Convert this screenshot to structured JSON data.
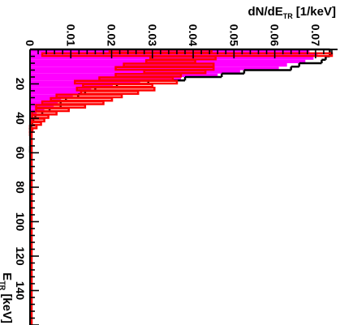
{
  "chart_data": {
    "type": "bar",
    "orientation": "rotated-90-clockwise",
    "xlabel": {
      "main": "E",
      "sub": "TR",
      "unit": "[keV]"
    },
    "ylabel": {
      "main": "dN/dE",
      "sub": "TR",
      "unit": "[1/keV]"
    },
    "xlim": [
      0,
      160
    ],
    "ylim": [
      0,
      0.075
    ],
    "xticks": [
      20,
      40,
      60,
      80,
      100,
      120,
      140
    ],
    "yticks": [
      0,
      0.01,
      0.02,
      0.03,
      0.04,
      0.05,
      0.06,
      0.07
    ],
    "ytick_labels": [
      "0",
      "0.01",
      "0.02",
      "0.03",
      "0.04",
      "0.05",
      "0.06",
      "0.07"
    ],
    "bin_width": 2,
    "series": [
      {
        "style": "step-line",
        "color": "#000000",
        "bins": [
          [
            2,
            0.0735
          ],
          [
            4,
            0.0735
          ],
          [
            6,
            0.0725
          ],
          [
            8,
            0.0715
          ],
          [
            10,
            0.066
          ],
          [
            12,
            0.064
          ],
          [
            14,
            0.0525
          ],
          [
            16,
            0.047
          ],
          [
            18,
            0.038
          ],
          [
            20,
            0.029
          ],
          [
            22,
            0.0213
          ],
          [
            24,
            0.016
          ],
          [
            26,
            0.0135
          ],
          [
            28,
            0.0118
          ],
          [
            30,
            0.0088
          ],
          [
            32,
            0.0075
          ],
          [
            34,
            0.0075
          ],
          [
            36,
            0.0048
          ],
          [
            38,
            0.003
          ],
          [
            40,
            0.0013
          ],
          [
            42,
            0.0008
          ],
          [
            44,
            0.0005
          ],
          [
            46,
            0.0003
          ],
          [
            48,
            0.0002
          ],
          [
            50,
            0.0001
          ],
          [
            52,
            0.0001
          ],
          [
            54,
            5e-05
          ],
          [
            56,
            4e-05
          ],
          [
            58,
            2e-05
          ],
          [
            60,
            1e-05
          ]
        ]
      },
      {
        "style": "filled",
        "color": "#ff00ff",
        "bins": [
          [
            2,
            0.0685
          ],
          [
            4,
            0.0705
          ],
          [
            6,
            0.0695
          ],
          [
            8,
            0.0675
          ],
          [
            10,
            0.063
          ],
          [
            12,
            0.061
          ],
          [
            14,
            0.0515
          ],
          [
            16,
            0.046
          ],
          [
            18,
            0.037
          ],
          [
            20,
            0.027
          ],
          [
            22,
            0.0203
          ],
          [
            24,
            0.015
          ],
          [
            26,
            0.0128
          ],
          [
            28,
            0.0105
          ],
          [
            30,
            0.0076
          ],
          [
            32,
            0.0068
          ],
          [
            34,
            0.0058
          ],
          [
            36,
            0.0035
          ],
          [
            38,
            0.0016
          ],
          [
            40,
            0.0008
          ],
          [
            42,
            0.0005
          ],
          [
            44,
            0.0003
          ],
          [
            46,
            0.0002
          ],
          [
            48,
            0.0001
          ],
          [
            50,
            0.0001
          ]
        ]
      },
      {
        "style": "error-boxes",
        "color": "#ff0000",
        "points": [
          [
            2,
            0.032,
            0.0125
          ],
          [
            4,
            0.0385,
            0.0355
          ],
          [
            6,
            0.0375,
            0.008
          ],
          [
            8,
            0.0345,
            0.006
          ],
          [
            10,
            0.034,
            0.011
          ],
          [
            12,
            0.033,
            0.012
          ],
          [
            14,
            0.0355,
            0.0075
          ],
          [
            16,
            0.029,
            0.008
          ],
          [
            18,
            0.026,
            0.009
          ],
          [
            20,
            0.0235,
            0.0125
          ],
          [
            22,
            0.0215,
            0.0085
          ],
          [
            24,
            0.021,
            0.0095
          ],
          [
            26,
            0.0195,
            0.007
          ],
          [
            28,
            0.0145,
            0.008
          ],
          [
            30,
            0.0126,
            0.0075
          ],
          [
            32,
            0.0105,
            0.0075
          ],
          [
            34,
            0.0075,
            0.006
          ],
          [
            36,
            0.0055,
            0.004
          ],
          [
            38,
            0.0035,
            0.003
          ],
          [
            40,
            0.0025,
            0.002
          ],
          [
            42,
            0.002,
            0.0015
          ],
          [
            44,
            0.0015,
            0.0012
          ],
          [
            46,
            0.0008,
            0.0008
          ],
          [
            48,
            0.0003,
            0.0003
          ],
          [
            50,
            0.0002,
            0.0002
          ]
        ],
        "baseline": 0.0004
      }
    ]
  }
}
